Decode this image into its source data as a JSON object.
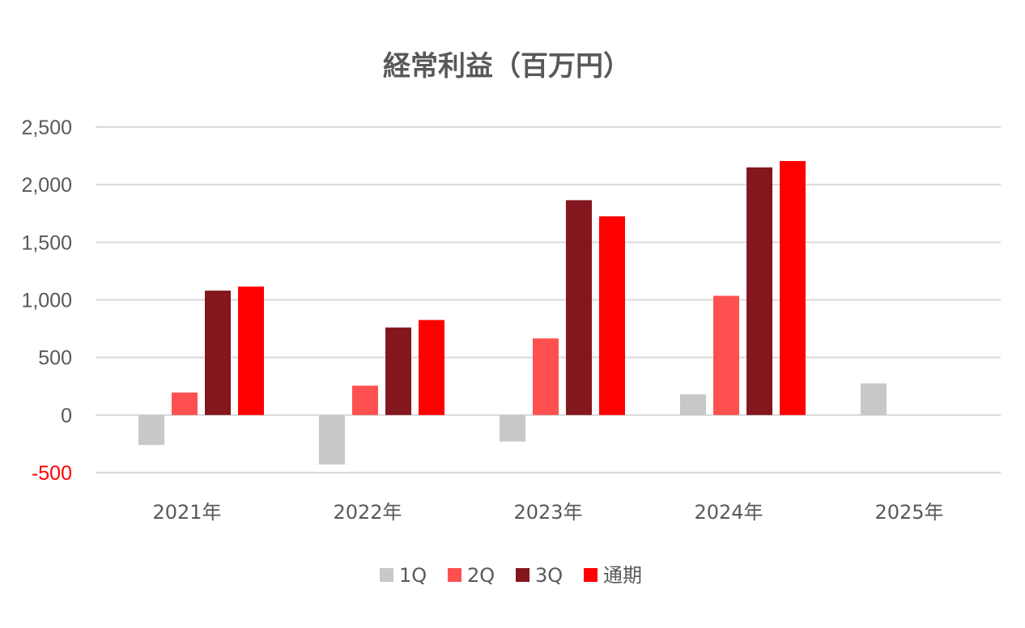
{
  "chart_data": {
    "type": "bar",
    "title": "経常利益（百万円）",
    "xlabel": "",
    "ylabel": "",
    "categories": [
      "2021年",
      "2022年",
      "2023年",
      "2024年",
      "2025年"
    ],
    "series": [
      {
        "name": "1Q",
        "color": "#c8c8c8",
        "values": [
          -260,
          -430,
          -230,
          180,
          275
        ]
      },
      {
        "name": "2Q",
        "color": "#ff5050",
        "values": [
          195,
          255,
          665,
          1035,
          null
        ]
      },
      {
        "name": "3Q",
        "color": "#84161e",
        "values": [
          1080,
          760,
          1865,
          2150,
          null
        ]
      },
      {
        "name": "通期",
        "color": "#ff0000",
        "values": [
          1115,
          825,
          1725,
          2205,
          null
        ]
      }
    ],
    "ylim": [
      -500,
      2500
    ],
    "yticks": [
      {
        "value": 2500,
        "label": "2,500",
        "color": "#595959"
      },
      {
        "value": 2000,
        "label": "2,000",
        "color": "#595959"
      },
      {
        "value": 1500,
        "label": "1,500",
        "color": "#595959"
      },
      {
        "value": 1000,
        "label": "1,000",
        "color": "#595959"
      },
      {
        "value": 500,
        "label": "500",
        "color": "#595959"
      },
      {
        "value": 0,
        "label": "0",
        "color": "#595959"
      },
      {
        "value": -500,
        "label": "-500",
        "color": "#ff0000"
      }
    ],
    "grid": true,
    "legend_position": "bottom"
  }
}
